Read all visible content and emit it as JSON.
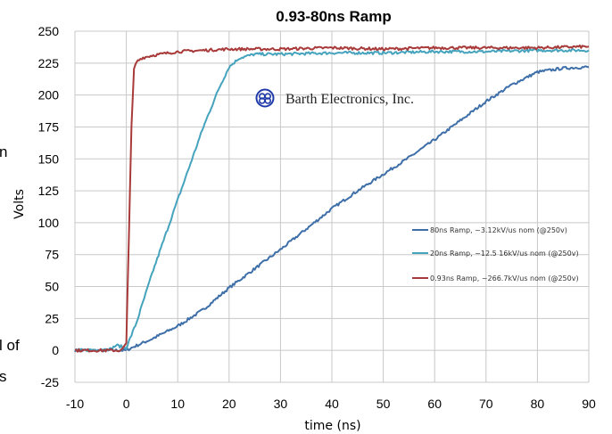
{
  "logo": {
    "text": "Barth Electronics, Inc."
  },
  "side_fragments": [
    "n",
    "l of",
    "s"
  ],
  "chart_data": {
    "type": "line",
    "title": "0.93-80ns Ramp",
    "xlabel": "time (ns)",
    "ylabel": "Volts",
    "xlim": [
      -10,
      90
    ],
    "ylim": [
      -25,
      250
    ],
    "xticks": [
      -10,
      0,
      10,
      20,
      30,
      40,
      50,
      60,
      70,
      80,
      90
    ],
    "yticks": [
      -25,
      0,
      25,
      50,
      75,
      100,
      125,
      150,
      175,
      200,
      225,
      250
    ],
    "grid": true,
    "legend_position": "right",
    "colors": {
      "80ns": "#3e6fa8",
      "20ns": "#45a3bd",
      "0.93ns": "#a83a3a"
    },
    "series": [
      {
        "name": "80ns Ramp, ~3.12kV/us nom (@250v)",
        "color": "#3e6fa8",
        "x": [
          -10,
          -2,
          0,
          1,
          5,
          10,
          15,
          20,
          25,
          30,
          35,
          40,
          45,
          50,
          55,
          60,
          65,
          70,
          75,
          80,
          85,
          90
        ],
        "y": [
          0,
          0,
          0,
          2,
          9,
          19,
          32,
          49,
          64,
          79,
          95,
          111,
          125,
          138,
          151,
          165,
          180,
          195,
          208,
          218,
          221,
          222
        ]
      },
      {
        "name": "20ns Ramp, ~12.5 16kV/us nom (@250v)",
        "color": "#45a3bd",
        "x": [
          -10,
          -3,
          -2,
          0,
          2,
          5,
          10,
          15,
          18,
          20,
          22,
          25,
          30,
          40,
          50,
          60,
          70,
          80,
          90
        ],
        "y": [
          0,
          1,
          4,
          2,
          22,
          60,
          118,
          175,
          205,
          222,
          229,
          232,
          232,
          233,
          233,
          234,
          234,
          235,
          235
        ]
      },
      {
        "name": "0.93ns Ramp, ~266.7kV/us nom (@250v)",
        "color": "#a83a3a",
        "x": [
          -10,
          -1,
          0,
          0.5,
          1,
          1.5,
          2,
          3,
          5,
          10,
          20,
          30,
          40,
          50,
          60,
          70,
          80,
          90
        ],
        "y": [
          0,
          0,
          5,
          90,
          175,
          220,
          226,
          229,
          231,
          234,
          236,
          236,
          237,
          236,
          237,
          237,
          237,
          238
        ]
      }
    ]
  }
}
